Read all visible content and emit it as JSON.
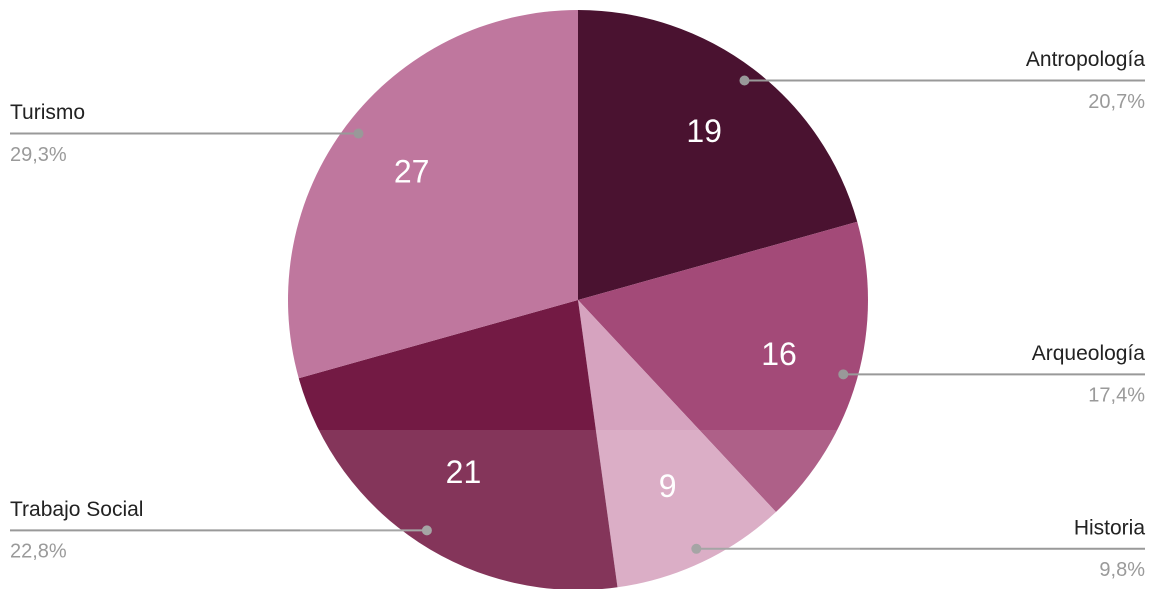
{
  "chart_data": {
    "type": "pie",
    "categories": [
      "Antropología",
      "Arqueología",
      "Historia",
      "Trabajo Social",
      "Turismo"
    ],
    "values": [
      19,
      16,
      9,
      21,
      27
    ],
    "percent_labels": [
      "20,7%",
      "17,4%",
      "9,8%",
      "22,8%",
      "29,3%"
    ],
    "colors": [
      "#4a1230",
      "#a34a78",
      "#d6a3bf",
      "#731a44",
      "#bf779e"
    ]
  }
}
